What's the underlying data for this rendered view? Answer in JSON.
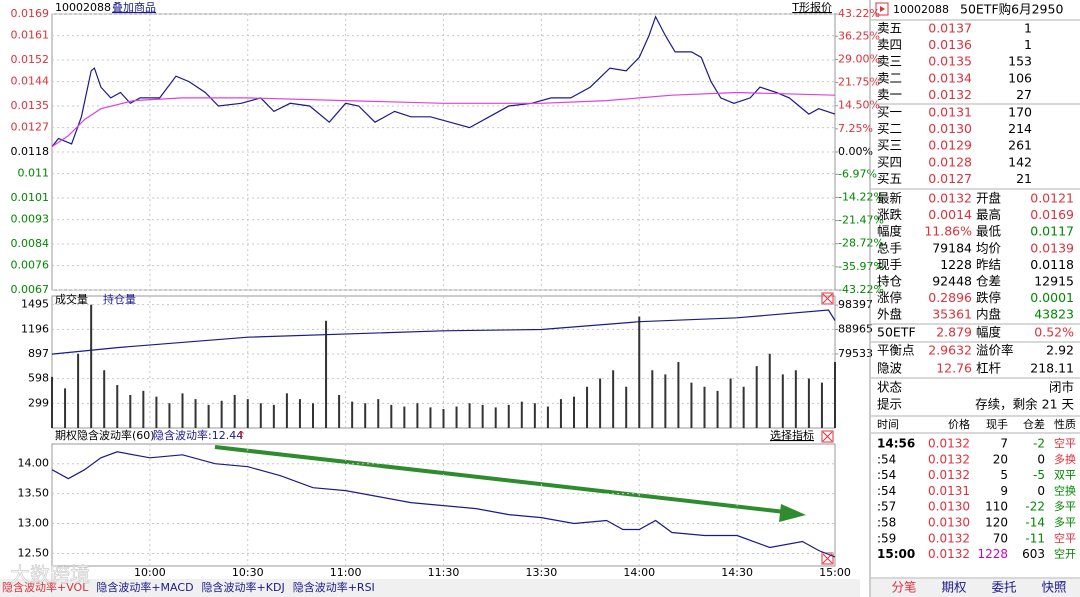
{
  "toolbar": {
    "code": "10002088",
    "overlay": "叠加商品",
    "t_quote": "T形报价"
  },
  "chart_data": [
    {
      "type": "line",
      "xlim": [
        0,
        240
      ],
      "ylim": [
        0.0067,
        0.0169
      ],
      "yticks": [
        0.0169,
        0.0161,
        0.0152,
        0.0144,
        0.0135,
        0.0127,
        0.0118,
        0.011,
        0.0101,
        0.0093,
        0.0084,
        0.0076,
        0.0067
      ],
      "y2lim": [
        -43.22,
        43.22
      ],
      "y2ticks": [
        {
          "value": 43.22,
          "label": "43.22%"
        },
        {
          "value": 36.25,
          "label": "36.25%"
        },
        {
          "value": 29,
          "label": "29.00%"
        },
        {
          "value": 21.75,
          "label": "21.75%"
        },
        {
          "value": 14.5,
          "label": "14.50%"
        },
        {
          "value": 7.25,
          "label": "7.25%"
        },
        {
          "value": 0,
          "label": "0.00%"
        },
        {
          "value": -6.97,
          "label": "-6.97%"
        },
        {
          "value": -14.22,
          "label": "-14.22%"
        },
        {
          "value": -21.47,
          "label": "-21.47%"
        },
        {
          "value": -28.72,
          "label": "-28.72%"
        },
        {
          "value": -35.97,
          "label": "-35.97%"
        },
        {
          "value": -43.22,
          "label": "-43.22%"
        }
      ],
      "grid": true,
      "series": [
        {
          "color": "#1a1a8c",
          "x": [
            0,
            2,
            6,
            9,
            12,
            13,
            15,
            18,
            21,
            24,
            27,
            33,
            38,
            42,
            47,
            51,
            58,
            64,
            68,
            73,
            79,
            85,
            90,
            94,
            99,
            105,
            110,
            116,
            122,
            128,
            134,
            140,
            147,
            153,
            159,
            165,
            171,
            176,
            180,
            183,
            185,
            188,
            191,
            196,
            199,
            202,
            205,
            209,
            214,
            217,
            222,
            226,
            229,
            232,
            235,
            240
          ],
          "values": [
            0.012,
            0.0123,
            0.0121,
            0.0131,
            0.0148,
            0.0149,
            0.0142,
            0.0138,
            0.014,
            0.0136,
            0.0138,
            0.0138,
            0.0146,
            0.0144,
            0.014,
            0.0135,
            0.0136,
            0.0138,
            0.0133,
            0.0136,
            0.0135,
            0.0129,
            0.0136,
            0.0135,
            0.0129,
            0.0133,
            0.0131,
            0.0131,
            0.0129,
            0.0127,
            0.0131,
            0.0135,
            0.0136,
            0.0138,
            0.0138,
            0.0142,
            0.0149,
            0.0148,
            0.0153,
            0.0161,
            0.0168,
            0.0161,
            0.0155,
            0.0155,
            0.0153,
            0.0144,
            0.0138,
            0.0136,
            0.0138,
            0.0142,
            0.014,
            0.0138,
            0.0135,
            0.0132,
            0.0134,
            0.0132
          ]
        },
        {
          "color": "#e040e0",
          "x": [
            0,
            5,
            10,
            15,
            25,
            40,
            60,
            90,
            120,
            150,
            170,
            190,
            210,
            240
          ],
          "values": [
            0.012,
            0.0124,
            0.013,
            0.0134,
            0.0137,
            0.0138,
            0.0138,
            0.0137,
            0.0136,
            0.0136,
            0.0137,
            0.0139,
            0.014,
            0.0139
          ]
        }
      ]
    },
    {
      "type": "bar",
      "xlim": [
        0,
        240
      ],
      "ylim": [
        0,
        1600
      ],
      "yticks": [
        299,
        598,
        897,
        1196,
        1495
      ],
      "y2lim": [
        51000,
        101900
      ],
      "y2ticks": [
        79533,
        88965,
        98397
      ],
      "series": [
        {
          "name": "成交量",
          "color": "#333333",
          "x": [
            0,
            4,
            8,
            12,
            16,
            20,
            24,
            28,
            32,
            36,
            40,
            44,
            48,
            52,
            56,
            60,
            64,
            68,
            72,
            76,
            80,
            84,
            88,
            92,
            96,
            100,
            104,
            108,
            112,
            116,
            120,
            124,
            128,
            132,
            136,
            140,
            144,
            148,
            152,
            156,
            160,
            164,
            168,
            172,
            176,
            180,
            184,
            188,
            192,
            196,
            200,
            204,
            208,
            212,
            216,
            220,
            224,
            228,
            232,
            236,
            240
          ],
          "values": [
            620,
            480,
            900,
            1495,
            700,
            520,
            400,
            450,
            380,
            300,
            420,
            350,
            280,
            330,
            400,
            350,
            300,
            280,
            420,
            350,
            300,
            1300,
            400,
            320,
            300,
            350,
            280,
            260,
            300,
            250,
            230,
            260,
            300,
            280,
            250,
            280,
            320,
            300,
            260,
            350,
            380,
            500,
            600,
            700,
            500,
            1350,
            700,
            650,
            800,
            550,
            500,
            450,
            600,
            500,
            750,
            900,
            650,
            700,
            600,
            550,
            800
          ]
        },
        {
          "name": "持仓量",
          "color": "#1a1a8c",
          "axis": "y2",
          "x": [
            0,
            20,
            60,
            120,
            150,
            180,
            210,
            238,
            240
          ],
          "values": [
            79500,
            82000,
            86000,
            88500,
            89000,
            92000,
            93500,
            96500,
            92448
          ]
        }
      ]
    },
    {
      "type": "line",
      "title": "期权隐含波动率(60)",
      "legend": "隐含波动率:12.44",
      "trend_mark": "↑",
      "button": "选择指标",
      "xlim": [
        0,
        240
      ],
      "ylim": [
        12.29,
        14.33
      ],
      "yticks": [
        {
          "value": 14,
          "label": "14.00"
        },
        {
          "value": 13.5,
          "label": "13.50"
        },
        {
          "value": 13,
          "label": "13.00"
        },
        {
          "value": 12.5,
          "label": "12.50"
        }
      ],
      "xticks": [
        {
          "value": 30,
          "label": "10:00"
        },
        {
          "value": 60,
          "label": "10:30"
        },
        {
          "value": 90,
          "label": "11:00"
        },
        {
          "value": 120,
          "label": "11:30"
        },
        {
          "value": 150,
          "label": "13:30"
        },
        {
          "value": 180,
          "label": "14:00"
        },
        {
          "value": 210,
          "label": "14:30"
        },
        {
          "value": 240,
          "label": "15:00"
        }
      ],
      "series": [
        {
          "color": "#1a1a8c",
          "x": [
            0,
            5,
            10,
            15,
            20,
            30,
            40,
            50,
            60,
            70,
            80,
            90,
            100,
            110,
            120,
            130,
            140,
            150,
            160,
            170,
            175,
            180,
            185,
            190,
            200,
            210,
            220,
            230,
            235,
            240
          ],
          "values": [
            13.9,
            13.75,
            13.9,
            14.1,
            14.2,
            14.1,
            14.15,
            14,
            13.95,
            13.8,
            13.6,
            13.55,
            13.45,
            13.35,
            13.3,
            13.25,
            13.15,
            13.1,
            13,
            13.05,
            12.9,
            12.9,
            13.05,
            12.85,
            12.8,
            12.8,
            12.6,
            12.7,
            12.55,
            12.44
          ]
        }
      ]
    }
  ],
  "bottom_tabs": [
    "隐含波动率+VOL",
    "隐含波动率+MACD",
    "隐含波动率+KDJ",
    "隐含波动率+RSI"
  ],
  "watermark": "大数跨境",
  "quote": {
    "code": "10002088",
    "name": "50ETF购6月2950",
    "asks": [
      {
        "label": "卖五",
        "price": "0.0137",
        "volume": "1"
      },
      {
        "label": "卖四",
        "price": "0.0136",
        "volume": "1"
      },
      {
        "label": "卖三",
        "price": "0.0135",
        "volume": "153"
      },
      {
        "label": "卖二",
        "price": "0.0134",
        "volume": "106"
      },
      {
        "label": "卖一",
        "price": "0.0132",
        "volume": "27"
      }
    ],
    "bids": [
      {
        "label": "买一",
        "price": "0.0131",
        "volume": "170"
      },
      {
        "label": "买二",
        "price": "0.0130",
        "volume": "214"
      },
      {
        "label": "买三",
        "price": "0.0129",
        "volume": "261"
      },
      {
        "label": "买四",
        "price": "0.0128",
        "volume": "142"
      },
      {
        "label": "买五",
        "price": "0.0127",
        "volume": "21"
      }
    ],
    "stats": [
      {
        "cells": [
          "最新",
          "0.0132",
          "开盘",
          "0.0121"
        ],
        "colors": [
          "#e0303a",
          "#e0303a"
        ]
      },
      {
        "cells": [
          "涨跌",
          "0.0014",
          "最高",
          "0.0169"
        ],
        "colors": [
          "#e0303a",
          "#e0303a"
        ]
      },
      {
        "cells": [
          "幅度",
          "11.86%",
          "最低",
          "0.0117"
        ],
        "colors": [
          "#e0303a",
          "#008800"
        ]
      },
      {
        "cells": [
          "总手",
          "79184",
          "均价",
          "0.0139"
        ],
        "colors": [
          "#000000",
          "#e0303a"
        ]
      },
      {
        "cells": [
          "现手",
          "1228",
          "昨结",
          "0.0118"
        ],
        "colors": [
          "#000000",
          "#000000"
        ]
      },
      {
        "cells": [
          "持仓",
          "92448",
          "仓差",
          "12915"
        ],
        "colors": [
          "#000000",
          "#000000"
        ]
      },
      {
        "cells": [
          "涨停",
          "0.2896",
          "跌停",
          "0.0001"
        ],
        "colors": [
          "#e0303a",
          "#008800"
        ]
      },
      {
        "cells": [
          "外盘",
          "35361",
          "内盘",
          "43823"
        ],
        "colors": [
          "#e0303a",
          "#008800"
        ]
      }
    ],
    "underlying": [
      {
        "cells": [
          "50ETF",
          "2.879",
          "幅度",
          "0.52%"
        ],
        "colors": [
          "#e0303a",
          "#e0303a"
        ]
      },
      {
        "cells": [
          "平衡点",
          "2.9632",
          "溢价率",
          "2.92"
        ],
        "colors": [
          "#e0303a",
          "#000000"
        ]
      },
      {
        "cells": [
          "隐波",
          "12.76",
          "杠杆",
          "218.11"
        ],
        "colors": [
          "#e0303a",
          "#000000"
        ]
      }
    ],
    "status": [
      [
        "状态",
        "闭市"
      ],
      [
        "提示",
        "存续，剩余 21 天"
      ]
    ],
    "trades": {
      "header": [
        "时间",
        "价格",
        "现手",
        "仓差",
        "性质"
      ],
      "rows": [
        {
          "cells": [
            "14:56",
            "0.0132",
            "7",
            "-2",
            "空平"
          ],
          "color": "#e0303a"
        },
        {
          "cells": [
            ":54",
            "0.0132",
            "20",
            "0",
            "多换"
          ],
          "color": "#e0303a"
        },
        {
          "cells": [
            ":54",
            "0.0132",
            "5",
            "-5",
            "双平"
          ],
          "color": "#008800"
        },
        {
          "cells": [
            ":54",
            "0.0131",
            "9",
            "0",
            "空换"
          ],
          "color": "#008800"
        },
        {
          "cells": [
            ":57",
            "0.0130",
            "110",
            "-22",
            "多平"
          ],
          "color": "#008800"
        },
        {
          "cells": [
            ":58",
            "0.0130",
            "120",
            "-14",
            "多平"
          ],
          "color": "#008800"
        },
        {
          "cells": [
            ":59",
            "0.0132",
            "70",
            "-11",
            "空平"
          ],
          "color": "#e0303a"
        },
        {
          "cells": [
            "15:00",
            "0.0132",
            "1228",
            "603",
            "空开"
          ],
          "color": "#008800"
        }
      ]
    },
    "tabs": [
      "分笔",
      "期权",
      "委托",
      "快照"
    ]
  }
}
